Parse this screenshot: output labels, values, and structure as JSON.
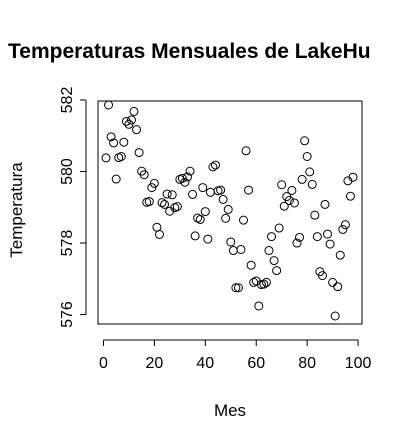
{
  "chart_data": {
    "type": "scatter",
    "title": "Temperaturas Mensuales de LakeHu",
    "xlabel": "Mes",
    "ylabel": "Temperatura",
    "xlim": [
      1,
      98
    ],
    "ylim": [
      575.96,
      581.86
    ],
    "x_ticks": [
      0,
      20,
      40,
      60,
      80,
      100
    ],
    "y_ticks": [
      576,
      578,
      580,
      582
    ],
    "marker": "open-circle",
    "grid": false,
    "x": [
      1,
      2,
      3,
      4,
      5,
      6,
      7,
      8,
      9,
      10,
      11,
      12,
      13,
      14,
      15,
      16,
      17,
      18,
      19,
      20,
      21,
      22,
      23,
      24,
      25,
      26,
      27,
      28,
      29,
      30,
      31,
      32,
      33,
      34,
      35,
      36,
      37,
      38,
      39,
      40,
      41,
      42,
      43,
      44,
      45,
      46,
      47,
      48,
      49,
      50,
      51,
      52,
      53,
      54,
      55,
      56,
      57,
      58,
      59,
      60,
      61,
      62,
      63,
      64,
      65,
      66,
      67,
      68,
      69,
      70,
      71,
      72,
      73,
      74,
      75,
      76,
      77,
      78,
      79,
      80,
      81,
      82,
      83,
      84,
      85,
      86,
      87,
      88,
      89,
      90,
      91,
      92,
      93,
      94,
      95,
      96,
      97,
      98
    ],
    "y": [
      580.38,
      581.86,
      580.97,
      580.8,
      579.79,
      580.39,
      580.42,
      580.82,
      581.4,
      581.32,
      581.44,
      581.68,
      581.17,
      580.53,
      580.01,
      579.91,
      579.14,
      579.16,
      579.55,
      579.67,
      578.44,
      578.24,
      579.13,
      579.08,
      579.37,
      578.89,
      579.35,
      578.99,
      579.02,
      579.78,
      579.81,
      579.7,
      579.85,
      580.01,
      579.36,
      578.2,
      578.7,
      578.66,
      579.55,
      578.88,
      578.11,
      579.42,
      580.13,
      580.18,
      579.46,
      579.48,
      579.22,
      578.69,
      578.94,
      578.03,
      577.79,
      576.75,
      576.75,
      577.82,
      578.64,
      580.58,
      579.48,
      577.38,
      576.9,
      576.94,
      576.24,
      576.84,
      576.85,
      576.9,
      577.79,
      578.18,
      577.51,
      577.23,
      578.42,
      579.63,
      579.03,
      579.3,
      579.19,
      579.47,
      579.12,
      578.0,
      578.16,
      579.78,
      580.86,
      580.42,
      579.99,
      579.64,
      578.78,
      578.18,
      577.2,
      577.09,
      579.08,
      578.25,
      577.97,
      576.9,
      575.96,
      576.78,
      577.66,
      578.38,
      578.51,
      579.74,
      579.31,
      579.84
    ]
  }
}
